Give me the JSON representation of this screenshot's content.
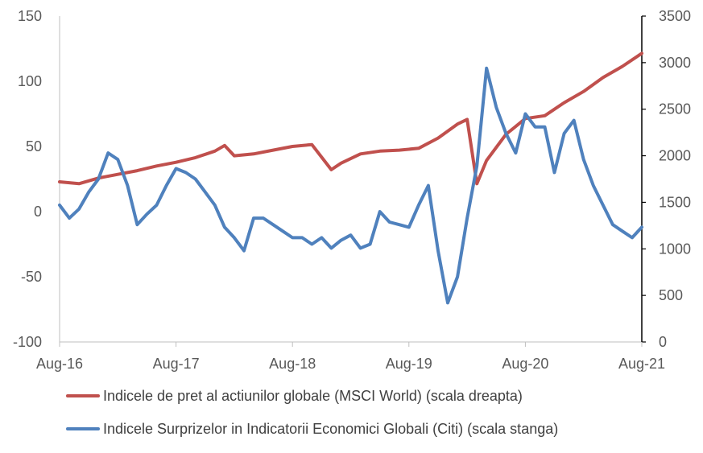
{
  "chart_data": {
    "type": "line",
    "title": "",
    "x_ticks": [
      "Aug-16",
      "Aug-17",
      "Aug-18",
      "Aug-19",
      "Aug-20",
      "Aug-21"
    ],
    "left_axis": {
      "min": -100,
      "max": 150,
      "ticks": [
        "150",
        "100",
        "50",
        "0",
        "-50",
        "-100"
      ]
    },
    "right_axis": {
      "min": 0,
      "max": 3500,
      "ticks": [
        "3500",
        "3000",
        "2500",
        "2000",
        "1500",
        "1000",
        "500",
        "0"
      ]
    },
    "grid": false,
    "legend_position": "bottom",
    "series": [
      {
        "name": "Indicele de pret al actiunilor globale (MSCI World) (scala dreapta)",
        "axis": "right",
        "color": "#C0504D",
        "x": [
          "2016-08",
          "2016-10",
          "2016-12",
          "2017-02",
          "2017-04",
          "2017-06",
          "2017-08",
          "2017-10",
          "2017-12",
          "2018-01",
          "2018-02",
          "2018-04",
          "2018-06",
          "2018-08",
          "2018-10",
          "2018-12",
          "2019-01",
          "2019-03",
          "2019-05",
          "2019-07",
          "2019-09",
          "2019-11",
          "2020-01",
          "2020-02",
          "2020-03",
          "2020-04",
          "2020-06",
          "2020-08",
          "2020-10",
          "2020-12",
          "2021-02",
          "2021-04",
          "2021-06",
          "2021-08"
        ],
        "values": [
          1720,
          1700,
          1760,
          1800,
          1840,
          1890,
          1930,
          1980,
          2050,
          2110,
          2000,
          2020,
          2060,
          2100,
          2120,
          1850,
          1920,
          2020,
          2050,
          2060,
          2080,
          2190,
          2340,
          2390,
          1700,
          1950,
          2230,
          2400,
          2430,
          2570,
          2690,
          2840,
          2960,
          3100
        ]
      },
      {
        "name": "Indicele Surprizelor in Indicatorii Economici Globali (Citi) (scala stanga)",
        "axis": "left",
        "color": "#4F81BD",
        "x": [
          "2016-08",
          "2016-09",
          "2016-10",
          "2016-11",
          "2016-12",
          "2017-01",
          "2017-02",
          "2017-03",
          "2017-04",
          "2017-05",
          "2017-06",
          "2017-07",
          "2017-08",
          "2017-09",
          "2017-10",
          "2017-11",
          "2017-12",
          "2018-01",
          "2018-02",
          "2018-03",
          "2018-04",
          "2018-05",
          "2018-06",
          "2018-07",
          "2018-08",
          "2018-09",
          "2018-10",
          "2018-11",
          "2018-12",
          "2019-01",
          "2019-02",
          "2019-03",
          "2019-04",
          "2019-05",
          "2019-06",
          "2019-07",
          "2019-08",
          "2019-09",
          "2019-10",
          "2019-11",
          "2019-12",
          "2020-01",
          "2020-02",
          "2020-03",
          "2020-04",
          "2020-05",
          "2020-06",
          "2020-07",
          "2020-08",
          "2020-09",
          "2020-10",
          "2020-11",
          "2020-12",
          "2021-01",
          "2021-02",
          "2021-03",
          "2021-04",
          "2021-05",
          "2021-06",
          "2021-07",
          "2021-08"
        ],
        "values": [
          5,
          -5,
          2,
          15,
          25,
          45,
          40,
          20,
          -10,
          -2,
          5,
          20,
          33,
          30,
          25,
          15,
          5,
          -12,
          -20,
          -30,
          -5,
          -5,
          -10,
          -15,
          -20,
          -20,
          -25,
          -20,
          -28,
          -22,
          -18,
          -28,
          -25,
          0,
          -8,
          -10,
          -12,
          5,
          20,
          -30,
          -70,
          -50,
          -5,
          35,
          110,
          80,
          60,
          45,
          75,
          65,
          65,
          30,
          60,
          70,
          40,
          20,
          5,
          -10,
          -15,
          -20,
          -12
        ]
      }
    ]
  }
}
